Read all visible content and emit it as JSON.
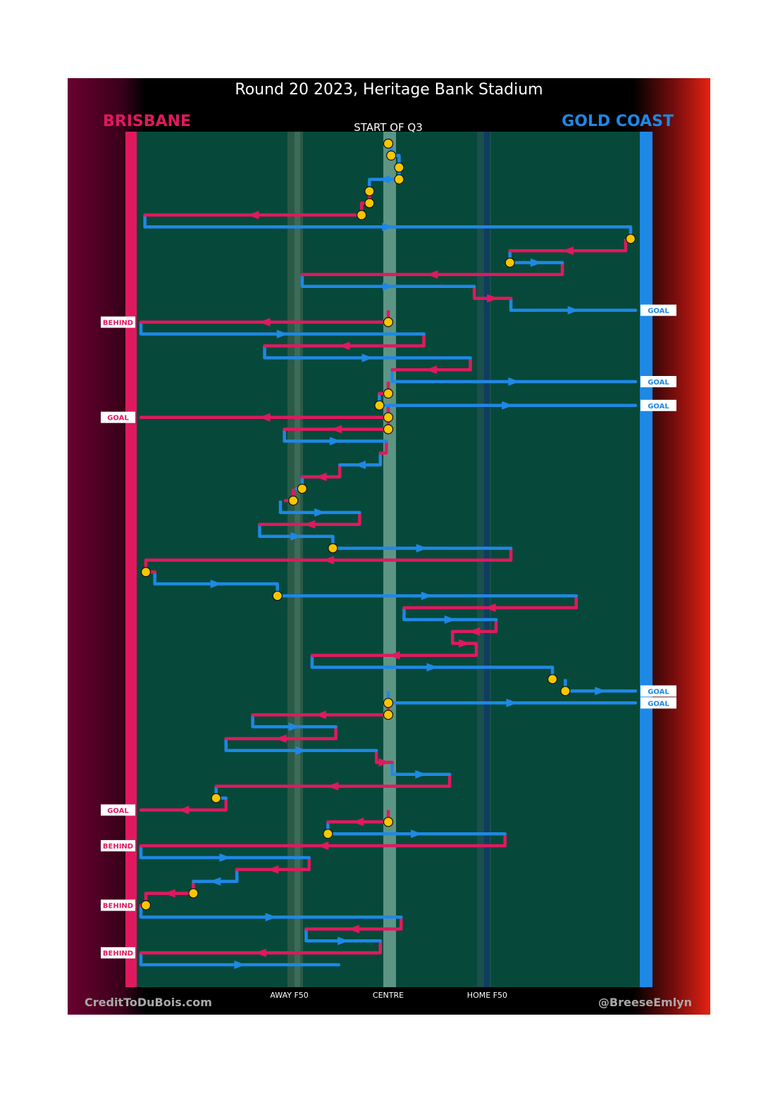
{
  "title": "Round 20 2023, Heritage Bank Stadium",
  "team_left": "BRISBANE",
  "team_right": "GOLD COAST",
  "start_label": "START OF Q3",
  "credit_left": "CreditToDuBois.com",
  "credit_right": "@BreeseEmlyn",
  "colors": {
    "brisbane": "#e0195e",
    "goldcoast": "#1e88e5",
    "field": "#06493a",
    "stoppage": "#f7c600",
    "frame": "#000000"
  },
  "chart_data": {
    "type": "line",
    "title": "Round 20 2023, Heritage Bank Stadium",
    "x_ticks": [
      {
        "label": "AWAY F50",
        "value": 0.3
      },
      {
        "label": "CENTRE",
        "value": 0.5
      },
      {
        "label": "HOME F50",
        "value": 0.7
      }
    ],
    "xlim": [
      0,
      1
    ],
    "legend": [
      {
        "name": "BRISBANE",
        "color": "#e0195e"
      },
      {
        "name": "GOLD COAST",
        "color": "#1e88e5"
      }
    ],
    "outcomes": [
      {
        "team": "goldcoast",
        "label": "GOAL",
        "step": 15
      },
      {
        "team": "brisbane",
        "label": "BEHIND",
        "step": 16
      },
      {
        "team": "goldcoast",
        "label": "GOAL",
        "step": 21
      },
      {
        "team": "goldcoast",
        "label": "GOAL",
        "step": 23
      },
      {
        "team": "brisbane",
        "label": "GOAL",
        "step": 24
      },
      {
        "team": "goldcoast",
        "label": "GOAL",
        "step": 47
      },
      {
        "team": "goldcoast",
        "label": "GOAL",
        "step": 48
      },
      {
        "team": "brisbane",
        "label": "GOAL",
        "step": 57
      },
      {
        "team": "brisbane",
        "label": "BEHIND",
        "step": 60
      },
      {
        "team": "brisbane",
        "label": "BEHIND",
        "step": 65
      },
      {
        "team": "brisbane",
        "label": "BEHIND",
        "step": 69
      }
    ],
    "series": [
      {
        "team": "brisbane",
        "x0": 0.5,
        "x1": 0.5,
        "step": 1,
        "stoppage": true
      },
      {
        "team": "goldcoast",
        "x0": 0.506,
        "x1": 0.522,
        "step": 2,
        "stoppage": true
      },
      {
        "team": "goldcoast",
        "x0": 0.522,
        "x1": 0.522,
        "step": 3,
        "stoppage": true
      },
      {
        "team": "goldcoast",
        "x0": 0.522,
        "x1": 0.462,
        "step": 4,
        "stoppage": true
      },
      {
        "team": "goldcoast",
        "x0": 0.462,
        "x1": 0.462,
        "step": 5,
        "stoppage": true
      },
      {
        "team": "brisbane",
        "x0": 0.462,
        "x1": 0.446,
        "step": 6,
        "stoppage": true
      },
      {
        "team": "brisbane",
        "x0": 0.446,
        "x1": 0.008,
        "step": 7,
        "stoppage": true
      },
      {
        "team": "goldcoast",
        "x0": 0.008,
        "x1": 0.99,
        "step": 8
      },
      {
        "team": "goldcoast",
        "x0": 0.99,
        "x1": 0.99,
        "step": 9,
        "stoppage": true
      },
      {
        "team": "brisbane",
        "x0": 0.98,
        "x1": 0.746,
        "step": 10
      },
      {
        "team": "goldcoast",
        "x0": 0.746,
        "x1": 0.852,
        "step": 11,
        "stoppage": true
      },
      {
        "team": "brisbane",
        "x0": 0.852,
        "x1": 0.326,
        "step": 12
      },
      {
        "team": "goldcoast",
        "x0": 0.326,
        "x1": 0.674,
        "step": 13
      },
      {
        "team": "brisbane",
        "x0": 0.674,
        "x1": 0.748,
        "step": 14
      },
      {
        "team": "goldcoast",
        "x0": 0.748,
        "x1": 1.0,
        "step": 15
      },
      {
        "team": "brisbane",
        "x0": 0.5,
        "x1": 0.0,
        "step": 16,
        "stoppage": true
      },
      {
        "team": "goldcoast",
        "x0": 0.0,
        "x1": 0.572,
        "step": 17
      },
      {
        "team": "brisbane",
        "x0": 0.572,
        "x1": 0.25,
        "step": 18
      },
      {
        "team": "goldcoast",
        "x0": 0.25,
        "x1": 0.666,
        "step": 19
      },
      {
        "team": "brisbane",
        "x0": 0.666,
        "x1": 0.508,
        "step": 20
      },
      {
        "team": "goldcoast",
        "x0": 0.508,
        "x1": 1.0,
        "step": 21
      },
      {
        "team": "brisbane",
        "x0": 0.5,
        "x1": 0.482,
        "step": 22,
        "stoppage": true
      },
      {
        "team": "goldcoast",
        "x0": 0.482,
        "x1": 1.0,
        "step": 23,
        "stoppage": true
      },
      {
        "team": "brisbane",
        "x0": 0.5,
        "x1": 0.0,
        "step": 24,
        "stoppage": true
      },
      {
        "team": "brisbane",
        "x0": 0.5,
        "x1": 0.29,
        "step": 25,
        "stoppage": true
      },
      {
        "team": "goldcoast",
        "x0": 0.29,
        "x1": 0.496,
        "step": 26
      },
      {
        "team": "brisbane",
        "x0": 0.496,
        "x1": 0.484,
        "step": 27
      },
      {
        "team": "goldcoast",
        "x0": 0.484,
        "x1": 0.402,
        "step": 28
      },
      {
        "team": "brisbane",
        "x0": 0.402,
        "x1": 0.326,
        "step": 29
      },
      {
        "team": "goldcoast",
        "x0": 0.326,
        "x1": 0.314,
        "step": 30,
        "stoppage": true
      },
      {
        "team": "brisbane",
        "x0": 0.308,
        "x1": 0.292,
        "step": 31,
        "stoppage": true
      },
      {
        "team": "goldcoast",
        "x0": 0.282,
        "x1": 0.442,
        "step": 32
      },
      {
        "team": "brisbane",
        "x0": 0.442,
        "x1": 0.24,
        "step": 33
      },
      {
        "team": "goldcoast",
        "x0": 0.24,
        "x1": 0.388,
        "step": 34
      },
      {
        "team": "goldcoast",
        "x0": 0.388,
        "x1": 0.748,
        "step": 35,
        "stoppage": true
      },
      {
        "team": "brisbane",
        "x0": 0.748,
        "x1": 0.01,
        "step": 36
      },
      {
        "team": "brisbane",
        "x0": 0.01,
        "x1": 0.028,
        "step": 37,
        "stoppage": true
      },
      {
        "team": "goldcoast",
        "x0": 0.028,
        "x1": 0.276,
        "step": 38
      },
      {
        "team": "goldcoast",
        "x0": 0.276,
        "x1": 0.88,
        "step": 39,
        "stoppage": true
      },
      {
        "team": "brisbane",
        "x0": 0.88,
        "x1": 0.532,
        "step": 40
      },
      {
        "team": "goldcoast",
        "x0": 0.532,
        "x1": 0.718,
        "step": 41
      },
      {
        "team": "brisbane",
        "x0": 0.718,
        "x1": 0.63,
        "step": 42
      },
      {
        "team": "brisbane",
        "x0": 0.63,
        "x1": 0.678,
        "step": 43
      },
      {
        "team": "brisbane",
        "x0": 0.678,
        "x1": 0.346,
        "step": 44
      },
      {
        "team": "goldcoast",
        "x0": 0.346,
        "x1": 0.832,
        "step": 45
      },
      {
        "team": "goldcoast",
        "x0": 0.832,
        "x1": 0.832,
        "step": 46,
        "stoppage": true
      },
      {
        "team": "goldcoast",
        "x0": 0.858,
        "x1": 1.0,
        "step": 47,
        "stoppage": true
      },
      {
        "team": "goldcoast",
        "x0": 0.5,
        "x1": 1.0,
        "step": 48,
        "stoppage": true
      },
      {
        "team": "brisbane",
        "x0": 0.5,
        "x1": 0.226,
        "step": 49,
        "stoppage": true
      },
      {
        "team": "goldcoast",
        "x0": 0.226,
        "x1": 0.394,
        "step": 50
      },
      {
        "team": "brisbane",
        "x0": 0.394,
        "x1": 0.172,
        "step": 51
      },
      {
        "team": "goldcoast",
        "x0": 0.172,
        "x1": 0.476,
        "step": 52
      },
      {
        "team": "brisbane",
        "x0": 0.476,
        "x1": 0.508,
        "step": 53
      },
      {
        "team": "goldcoast",
        "x0": 0.508,
        "x1": 0.624,
        "step": 54
      },
      {
        "team": "brisbane",
        "x0": 0.624,
        "x1": 0.152,
        "step": 55
      },
      {
        "team": "goldcoast",
        "x0": 0.152,
        "x1": 0.172,
        "step": 56,
        "stoppage": true
      },
      {
        "team": "brisbane",
        "x0": 0.172,
        "x1": 0.0,
        "step": 57
      },
      {
        "team": "brisbane",
        "x0": 0.5,
        "x1": 0.378,
        "step": 58,
        "stoppage": true
      },
      {
        "team": "goldcoast",
        "x0": 0.378,
        "x1": 0.736,
        "step": 59,
        "stoppage": true
      },
      {
        "team": "brisbane",
        "x0": 0.736,
        "x1": 0.0,
        "step": 60
      },
      {
        "team": "goldcoast",
        "x0": 0.0,
        "x1": 0.34,
        "step": 61
      },
      {
        "team": "brisbane",
        "x0": 0.34,
        "x1": 0.194,
        "step": 62
      },
      {
        "team": "goldcoast",
        "x0": 0.194,
        "x1": 0.106,
        "step": 63
      },
      {
        "team": "brisbane",
        "x0": 0.106,
        "x1": 0.01,
        "step": 64,
        "stoppage": true
      },
      {
        "team": "brisbane",
        "x0": 0.01,
        "x1": 0.0,
        "step": 65,
        "stoppage": true
      },
      {
        "team": "goldcoast",
        "x0": 0.0,
        "x1": 0.526,
        "step": 66
      },
      {
        "team": "brisbane",
        "x0": 0.526,
        "x1": 0.334,
        "step": 67
      },
      {
        "team": "goldcoast",
        "x0": 0.334,
        "x1": 0.484,
        "step": 68
      },
      {
        "team": "brisbane",
        "x0": 0.484,
        "x1": 0.0,
        "step": 69
      },
      {
        "team": "goldcoast",
        "x0": 0.0,
        "x1": 0.4,
        "step": 70
      }
    ]
  }
}
